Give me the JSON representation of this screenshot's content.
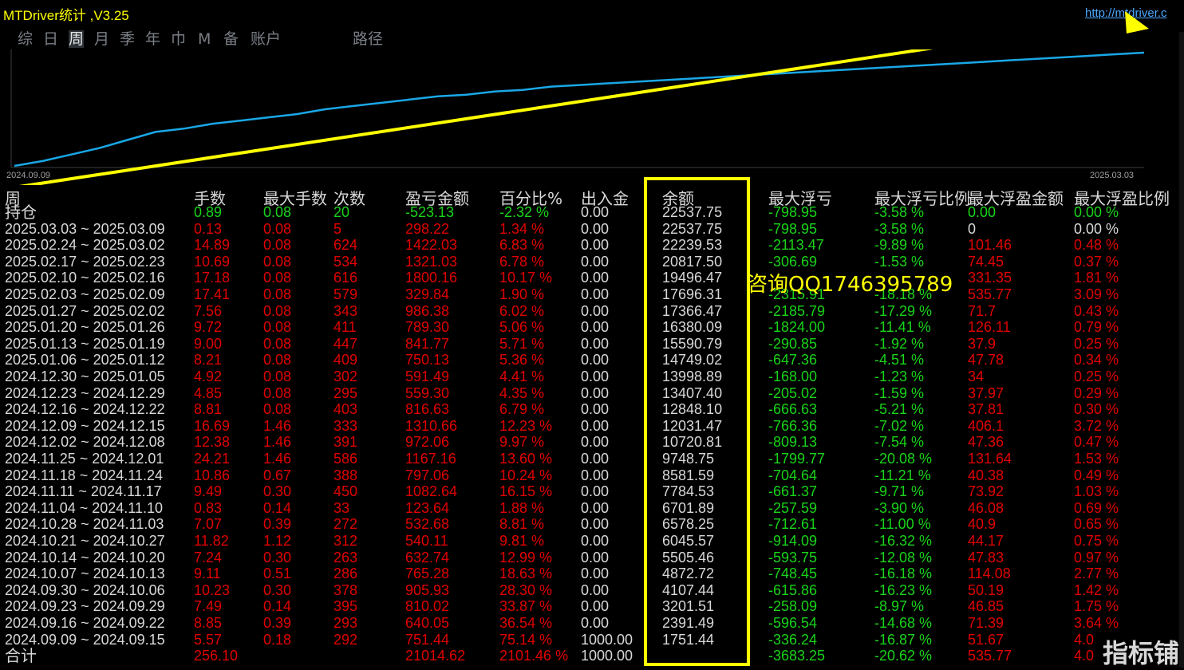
{
  "app": {
    "title": "MTDriver统计 ,V3.25",
    "url": "http://mtdriver.c"
  },
  "tabs": [
    "综",
    "日",
    "周",
    "月",
    "季",
    "年",
    "巾",
    "M",
    "备",
    "账户",
    "路径"
  ],
  "active_tab": 2,
  "chart_data": {
    "type": "line",
    "x_start": "2024.09.09",
    "x_end": "2025.03.03",
    "series": [
      {
        "values": [
          0,
          3,
          7,
          11,
          16,
          21,
          23,
          26,
          28,
          30,
          32,
          35,
          37,
          39,
          41,
          43,
          44,
          46,
          47,
          49,
          50,
          51,
          52,
          53,
          54,
          55,
          56,
          57,
          58,
          59,
          60,
          61,
          62,
          63,
          64,
          65,
          66,
          67,
          68,
          69,
          70
        ]
      }
    ],
    "line_color": "#1aa7e6",
    "annotation_arrow_color": "#ffff00"
  },
  "columns": [
    "周",
    "手数",
    "最大手数",
    "次数",
    "盈亏金额",
    "百分比%",
    "出入金",
    "余额",
    "最大浮亏",
    "最大浮亏比例",
    "最大浮盈金额",
    "最大浮盈比例"
  ],
  "colors": {
    "red": "#e00000",
    "green": "#19d319",
    "white": "#d8d8d8",
    "highlight": "#ffff00"
  },
  "rows": [
    {
      "c": "g",
      "cells": [
        "持仓",
        "0.89",
        "0.08",
        "20",
        "-523.13",
        "-2.32 %",
        "0.00",
        "22537.75",
        "-798.95",
        "-3.58 %",
        "0.00",
        "0.00 %"
      ]
    },
    {
      "c": "w",
      "cells": [
        "2025.03.03 ~ 2025.03.09",
        "0.13",
        "0.08",
        "5",
        "298.22",
        "1.34 %",
        "0.00",
        "22537.75",
        "-798.95",
        "-3.58 %",
        "0",
        "0.00 %"
      ]
    },
    {
      "c": "r",
      "cells": [
        "2025.02.24 ~ 2025.03.02",
        "14.89",
        "0.08",
        "624",
        "1422.03",
        "6.83 %",
        "0.00",
        "22239.53",
        "-2113.47",
        "-9.89 %",
        "101.46",
        "0.48 %"
      ]
    },
    {
      "c": "r",
      "cells": [
        "2025.02.17 ~ 2025.02.23",
        "10.69",
        "0.08",
        "534",
        "1321.03",
        "6.78 %",
        "0.00",
        "20817.50",
        "-306.69",
        "-1.53 %",
        "74.45",
        "0.37 %"
      ]
    },
    {
      "c": "r",
      "cells": [
        "2025.02.10 ~ 2025.02.16",
        "17.18",
        "0.08",
        "616",
        "1800.16",
        "10.17 %",
        "0.00",
        "19496.47",
        "",
        "",
        "331.35",
        "1.81 %"
      ]
    },
    {
      "c": "r",
      "cells": [
        "2025.02.03 ~ 2025.02.09",
        "17.41",
        "0.08",
        "579",
        "329.84",
        "1.90 %",
        "0.00",
        "17696.31",
        "-2315.91",
        "-18.18 %",
        "535.77",
        "3.09 %"
      ]
    },
    {
      "c": "r",
      "cells": [
        "2025.01.27 ~ 2025.02.02",
        "7.56",
        "0.08",
        "343",
        "986.38",
        "6.02 %",
        "0.00",
        "17366.47",
        "-2185.79",
        "-17.29 %",
        "71.7",
        "0.43 %"
      ]
    },
    {
      "c": "r",
      "cells": [
        "2025.01.20 ~ 2025.01.26",
        "9.72",
        "0.08",
        "411",
        "789.30",
        "5.06 %",
        "0.00",
        "16380.09",
        "-1824.00",
        "-11.41 %",
        "126.11",
        "0.79 %"
      ]
    },
    {
      "c": "r",
      "cells": [
        "2025.01.13 ~ 2025.01.19",
        "9.00",
        "0.08",
        "447",
        "841.77",
        "5.71 %",
        "0.00",
        "15590.79",
        "-290.85",
        "-1.92 %",
        "37.9",
        "0.25 %"
      ]
    },
    {
      "c": "r",
      "cells": [
        "2025.01.06 ~ 2025.01.12",
        "8.21",
        "0.08",
        "409",
        "750.13",
        "5.36 %",
        "0.00",
        "14749.02",
        "-647.36",
        "-4.51 %",
        "47.78",
        "0.34 %"
      ]
    },
    {
      "c": "r",
      "cells": [
        "2024.12.30 ~ 2025.01.05",
        "4.92",
        "0.08",
        "302",
        "591.49",
        "4.41 %",
        "0.00",
        "13998.89",
        "-168.00",
        "-1.23 %",
        "34",
        "0.25 %"
      ]
    },
    {
      "c": "r",
      "cells": [
        "2024.12.23 ~ 2024.12.29",
        "4.85",
        "0.08",
        "295",
        "559.30",
        "4.35 %",
        "0.00",
        "13407.40",
        "-205.02",
        "-1.59 %",
        "37.97",
        "0.29 %"
      ]
    },
    {
      "c": "r",
      "cells": [
        "2024.12.16 ~ 2024.12.22",
        "8.81",
        "0.08",
        "403",
        "816.63",
        "6.79 %",
        "0.00",
        "12848.10",
        "-666.63",
        "-5.21 %",
        "37.81",
        "0.30 %"
      ]
    },
    {
      "c": "r",
      "cells": [
        "2024.12.09 ~ 2024.12.15",
        "16.69",
        "1.46",
        "333",
        "1310.66",
        "12.23 %",
        "0.00",
        "12031.47",
        "-766.36",
        "-7.02 %",
        "406.1",
        "3.72 %"
      ]
    },
    {
      "c": "r",
      "cells": [
        "2024.12.02 ~ 2024.12.08",
        "12.38",
        "1.46",
        "391",
        "972.06",
        "9.97 %",
        "0.00",
        "10720.81",
        "-809.13",
        "-7.54 %",
        "47.36",
        "0.47 %"
      ]
    },
    {
      "c": "r",
      "cells": [
        "2024.11.25 ~ 2024.12.01",
        "24.21",
        "1.46",
        "586",
        "1167.16",
        "13.60 %",
        "0.00",
        "9748.75",
        "-1799.77",
        "-20.08 %",
        "131.64",
        "1.53 %"
      ]
    },
    {
      "c": "r",
      "cells": [
        "2024.11.18 ~ 2024.11.24",
        "10.86",
        "0.67",
        "388",
        "797.06",
        "10.24 %",
        "0.00",
        "8581.59",
        "-704.64",
        "-11.21 %",
        "40.38",
        "0.49 %"
      ]
    },
    {
      "c": "r",
      "cells": [
        "2024.11.11 ~ 2024.11.17",
        "9.49",
        "0.30",
        "450",
        "1082.64",
        "16.15 %",
        "0.00",
        "7784.53",
        "-661.37",
        "-9.71 %",
        "73.92",
        "1.03 %"
      ]
    },
    {
      "c": "r",
      "cells": [
        "2024.11.04 ~ 2024.11.10",
        "0.83",
        "0.14",
        "33",
        "123.64",
        "1.88 %",
        "0.00",
        "6701.89",
        "-257.59",
        "-3.90 %",
        "46.08",
        "0.69 %"
      ]
    },
    {
      "c": "r",
      "cells": [
        "2024.10.28 ~ 2024.11.03",
        "7.07",
        "0.39",
        "272",
        "532.68",
        "8.81 %",
        "0.00",
        "6578.25",
        "-712.61",
        "-11.00 %",
        "40.9",
        "0.65 %"
      ]
    },
    {
      "c": "r",
      "cells": [
        "2024.10.21 ~ 2024.10.27",
        "11.82",
        "1.12",
        "312",
        "540.11",
        "9.81 %",
        "0.00",
        "6045.57",
        "-914.09",
        "-16.32 %",
        "44.17",
        "0.75 %"
      ]
    },
    {
      "c": "r",
      "cells": [
        "2024.10.14 ~ 2024.10.20",
        "7.24",
        "0.30",
        "263",
        "632.74",
        "12.99 %",
        "0.00",
        "5505.46",
        "-593.75",
        "-12.08 %",
        "47.83",
        "0.97 %"
      ]
    },
    {
      "c": "r",
      "cells": [
        "2024.10.07 ~ 2024.10.13",
        "9.11",
        "0.51",
        "286",
        "765.28",
        "18.63 %",
        "0.00",
        "4872.72",
        "-748.45",
        "-16.18 %",
        "114.08",
        "2.77 %"
      ]
    },
    {
      "c": "r",
      "cells": [
        "2024.09.30 ~ 2024.10.06",
        "10.23",
        "0.30",
        "378",
        "905.93",
        "28.30 %",
        "0.00",
        "4107.44",
        "-615.86",
        "-16.23 %",
        "50.19",
        "1.42 %"
      ]
    },
    {
      "c": "r",
      "cells": [
        "2024.09.23 ~ 2024.09.29",
        "7.49",
        "0.14",
        "395",
        "810.02",
        "33.87 %",
        "0.00",
        "3201.51",
        "-258.09",
        "-8.97 %",
        "46.85",
        "1.75 %"
      ]
    },
    {
      "c": "r",
      "cells": [
        "2024.09.16 ~ 2024.09.22",
        "8.85",
        "0.39",
        "293",
        "640.05",
        "36.54 %",
        "0.00",
        "2391.49",
        "-596.54",
        "-14.68 %",
        "71.39",
        "3.64 %"
      ]
    },
    {
      "c": "r",
      "cells": [
        "2024.09.09 ~ 2024.09.15",
        "5.57",
        "0.18",
        "292",
        "751.44",
        "75.14 %",
        "1000.00",
        "1751.44",
        "-336.24",
        "-16.87 %",
        "51.67",
        "4.0"
      ]
    },
    {
      "c": "r",
      "cells": [
        "合计",
        "256.10",
        "",
        "",
        "21014.62",
        "2101.46 %",
        "1000.00",
        "",
        "-3683.25",
        "-20.62 %",
        "535.77",
        "4.0"
      ]
    }
  ],
  "watermark": "咨询QQ1746395789",
  "logo": "指标铺"
}
